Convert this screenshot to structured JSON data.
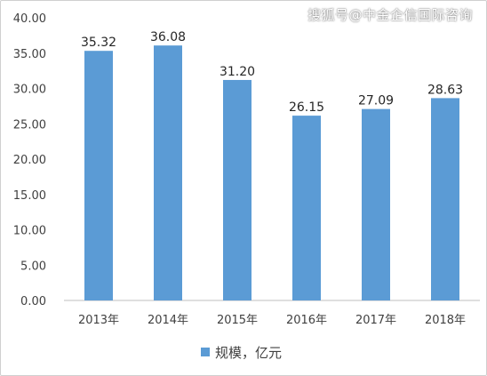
{
  "watermark": "搜狐号@中金企信国际咨询",
  "chart_data": {
    "type": "bar",
    "categories": [
      "2013年",
      "2014年",
      "2015年",
      "2016年",
      "2017年",
      "2018年"
    ],
    "series": [
      {
        "name": "规模，亿元",
        "values": [
          35.32,
          36.08,
          31.2,
          26.15,
          27.09,
          28.63
        ]
      }
    ],
    "data_labels": [
      "35.32",
      "36.08",
      "31.20",
      "26.15",
      "27.09",
      "28.63"
    ],
    "y_ticks": [
      "0.00",
      "5.00",
      "10.00",
      "15.00",
      "20.00",
      "25.00",
      "30.00",
      "35.00",
      "40.00"
    ],
    "ylim": [
      0,
      40
    ],
    "grid": false,
    "legend_position": "bottom",
    "bar_color": "#5b9bd5",
    "title": "",
    "xlabel": "",
    "ylabel": ""
  }
}
